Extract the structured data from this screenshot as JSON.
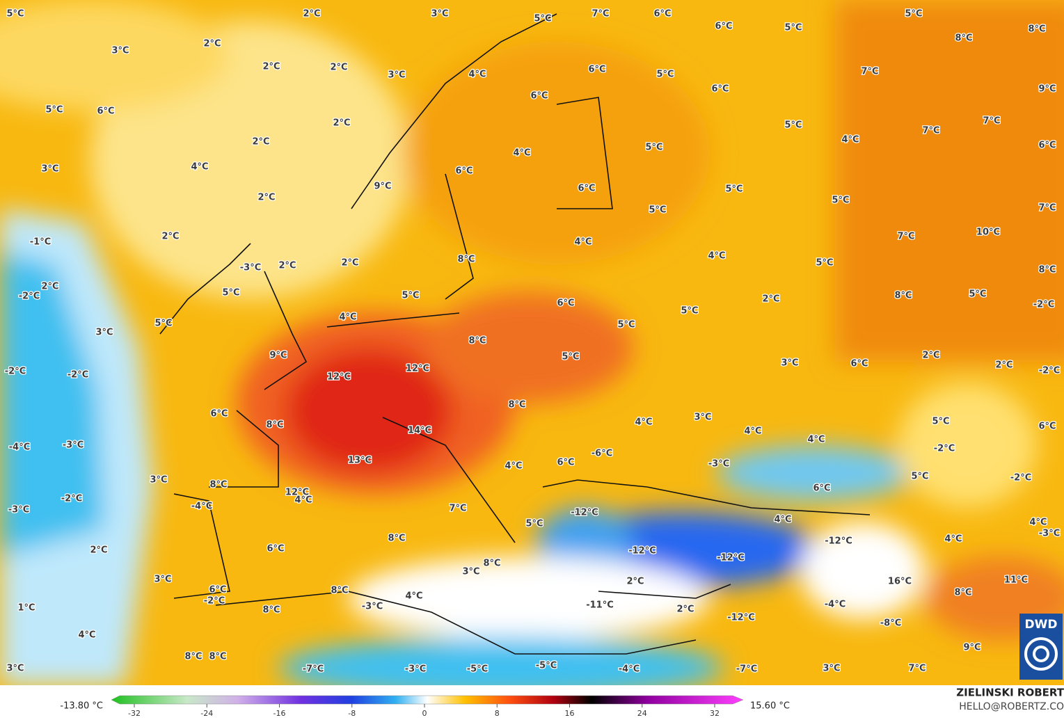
{
  "map": {
    "labels": [
      "5°C",
      "2°C",
      "3°C",
      "5°C",
      "7°C",
      "6°C",
      "6°C",
      "5°C",
      "5°C",
      "8°C",
      "8°C",
      "3°C",
      "2°C",
      "2°C",
      "2°C",
      "3°C",
      "4°C",
      "6°C",
      "5°C",
      "6°C",
      "7°C",
      "9°C",
      "5°C",
      "6°C",
      "6°C",
      "2°C",
      "5°C",
      "7°C",
      "7°C",
      "2°C",
      "4°C",
      "6°C",
      "5°C",
      "4°C",
      "3°C",
      "4°C",
      "6°C",
      "9°C",
      "6°C",
      "5°C",
      "2°C",
      "5°C",
      "7°C",
      "5°C",
      "2°C",
      "-1°C",
      "7°C",
      "10°C",
      "4°C",
      "4°C",
      "8°C",
      "-3°C",
      "2°C",
      "2°C",
      "5°C",
      "8°C",
      "2°C",
      "-2°C",
      "5°C",
      "5°C",
      "6°C",
      "5°C",
      "2°C",
      "8°C",
      "5°C",
      "-2°C",
      "3°C",
      "5°C",
      "4°C",
      "5°C",
      "8°C",
      "9°C",
      "5°C",
      "3°C",
      "2°C",
      "6°C",
      "2°C",
      "-2°C",
      "-2°C",
      "12°C",
      "12°C",
      "-2°C",
      "6°C",
      "8°C",
      "8°C",
      "4°C",
      "3°C",
      "5°C",
      "6°C",
      "14°C",
      "4°C",
      "4°C",
      "-4°C",
      "-3°C",
      "-6°C",
      "-2°C",
      "13°C",
      "4°C",
      "6°C",
      "-3°C",
      "5°C",
      "-2°C",
      "3°C",
      "8°C",
      "12°C",
      "4°C",
      "-2°C",
      "6°C",
      "-4°C",
      "-3°C",
      "7°C",
      "-12°C",
      "4°C",
      "4°C",
      "5°C",
      "-3°C",
      "-12°C",
      "4°C",
      "8°C",
      "2°C",
      "6°C",
      "-12°C",
      "-12°C",
      "8°C",
      "3°C",
      "3°C",
      "2°C",
      "16°C",
      "11°C",
      "6°C",
      "8°C",
      "4°C",
      "8°C",
      "-2°C",
      "-11°C",
      "-4°C",
      "1°C",
      "-3°C",
      "8°C",
      "2°C",
      "-12°C",
      "-8°C",
      "4°C",
      "9°C",
      "8°C",
      "8°C",
      "3°C",
      "-7°C",
      "-3°C",
      "-5°C",
      "-5°C",
      "-4°C",
      "-7°C",
      "3°C",
      "7°C"
    ],
    "logo": "DWD"
  },
  "legend": {
    "min_label": "-13.80 °C",
    "max_label": "15.60 °C",
    "ticks": [
      -32,
      -24,
      -16,
      -8,
      0,
      8,
      16,
      24,
      32
    ]
  },
  "credits": {
    "author": "ZIELINSKI ROBERT",
    "email": "HELLO@ROBERTZ.CO"
  }
}
